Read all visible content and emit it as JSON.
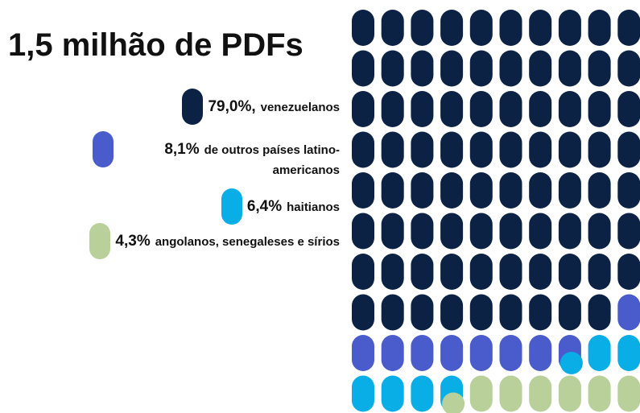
{
  "chart_data": {
    "type": "waffle",
    "title": "1,5 milhão de PDFs",
    "series": [
      {
        "name": "venezuelanos",
        "color": "#0c2244",
        "values": [
          79.0
        ],
        "value_labels": [
          "79,0%,"
        ]
      },
      {
        "name": "de outros países latino-americanos",
        "color": "#4a5bcc",
        "values": [
          8.1
        ],
        "value_labels": [
          "8,1%"
        ]
      },
      {
        "name": "haitianos",
        "color": "#0aaee6",
        "values": [
          6.4
        ],
        "value_labels": [
          "6,4%"
        ]
      },
      {
        "name": "angolanos, senegaleses e sírios",
        "color": "#b9d09a",
        "values": [
          4.3
        ],
        "value_labels": [
          "4,3%"
        ]
      }
    ]
  }
}
